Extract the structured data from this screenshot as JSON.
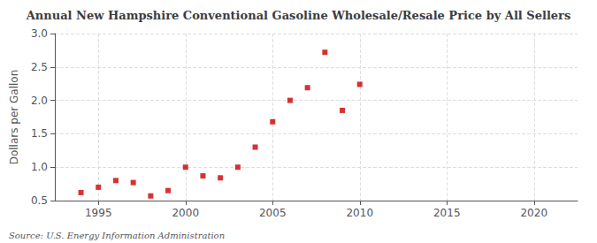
{
  "chart_data": {
    "type": "scatter",
    "title": "Annual New Hampshire Conventional Gasoline Wholesale/Resale Price by All Sellers",
    "ylabel": "Dollars per Gallon",
    "annotation": "Source: U.S. Energy Information Administration",
    "x": [
      1994,
      1995,
      1996,
      1997,
      1998,
      1999,
      2000,
      2001,
      2002,
      2003,
      2004,
      2005,
      2006,
      2007,
      2008,
      2009,
      2010
    ],
    "values": [
      0.62,
      0.7,
      0.8,
      0.77,
      0.57,
      0.65,
      1.0,
      0.87,
      0.84,
      1.0,
      1.3,
      1.68,
      2.0,
      2.19,
      2.72,
      1.85,
      2.24
    ],
    "color": "#cc0000",
    "marker": "square",
    "xlim": [
      1992.5,
      2022.5
    ],
    "xticks": [
      1995,
      2000,
      2005,
      2010,
      2015,
      2020
    ],
    "ylim": [
      0.5,
      3.0
    ],
    "yticks": [
      0.5,
      {
        "value": 1.0,
        "label": "1.0"
      },
      1.5,
      {
        "value": 2.0,
        "label": "2.0"
      },
      2.5,
      {
        "value": 3.0,
        "label": "3.0"
      }
    ],
    "grid": true
  }
}
